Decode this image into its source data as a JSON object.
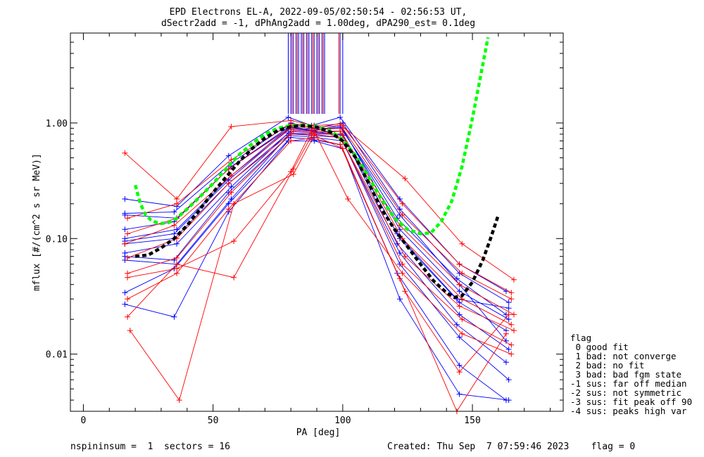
{
  "title_line1": "EPD Electrons EL-A, 2022-09-05/02:50:54 - 02:56:53 UT,",
  "title_line2": "dSectr2add = -1, dPhAng2add = 1.00deg, dPA290_est=   0.1deg",
  "footer_left": "nspininsum =  1  sectors = 16",
  "footer_right": "Created: Thu Sep  7 07:59:46 2023    flag = 0",
  "legend": {
    "title": "flag",
    "items": [
      " 0 good fit",
      " 1 bad: not converge",
      " 2 bad: no fit",
      " 3 bad: bad fgm state",
      "-1 sus: far off median",
      "-2 sus: not symmetric",
      "-3 sus: fit peak off 90",
      "-4 sus: peaks high var"
    ]
  },
  "colors": {
    "red": "#ff0000",
    "blue": "#0000ff",
    "green": "#00ff00",
    "black": "#000000"
  },
  "chart_data": {
    "type": "line",
    "xlabel": "PA [deg]",
    "ylabel": "mflux [#/(cm^2 s sr MeV)]",
    "xlim": [
      -5,
      185
    ],
    "ylim": [
      0.0032,
      6.0
    ],
    "yscale": "log",
    "x_ticks": [
      0,
      50,
      100,
      150
    ],
    "x_tick_labels": [
      "0",
      "50",
      "100",
      "150"
    ],
    "y_ticks": [
      0.01,
      0.1,
      1.0
    ],
    "y_tick_labels": [
      "0.01",
      "0.10",
      "1.00"
    ],
    "blue_series": [
      {
        "x": [
          16,
          36,
          56,
          79,
          88,
          99,
          122,
          145,
          163
        ],
        "y": [
          0.22,
          0.19,
          0.52,
          1.12,
          0.95,
          1.12,
          0.22,
          0.06,
          0.035
        ]
      },
      {
        "x": [
          16,
          35,
          57,
          80,
          89,
          100,
          122,
          145,
          164
        ],
        "y": [
          0.165,
          0.17,
          0.45,
          1.0,
          0.9,
          1.0,
          0.18,
          0.05,
          0.028
        ]
      },
      {
        "x": [
          16,
          35,
          56,
          80,
          88,
          99,
          121,
          144,
          163
        ],
        "y": [
          0.12,
          0.14,
          0.4,
          0.95,
          0.85,
          0.95,
          0.15,
          0.045,
          0.022
        ]
      },
      {
        "x": [
          16,
          36,
          57,
          79,
          89,
          100,
          122,
          145,
          164
        ],
        "y": [
          0.1,
          0.12,
          0.35,
          0.9,
          0.88,
          0.9,
          0.12,
          0.035,
          0.02
        ]
      },
      {
        "x": [
          16,
          35,
          56,
          80,
          88,
          99,
          122,
          145,
          163
        ],
        "y": [
          0.09,
          0.1,
          0.3,
          0.85,
          0.82,
          0.85,
          0.1,
          0.028,
          0.016
        ]
      },
      {
        "x": [
          16,
          36,
          57,
          79,
          89,
          100,
          121,
          145,
          164
        ],
        "y": [
          0.075,
          0.09,
          0.28,
          0.82,
          0.8,
          0.8,
          0.09,
          0.022,
          0.011
        ]
      },
      {
        "x": [
          16,
          35,
          56,
          80,
          88,
          99,
          122,
          144,
          163
        ],
        "y": [
          0.07,
          0.065,
          0.25,
          0.8,
          0.78,
          0.75,
          0.075,
          0.018,
          0.0085
        ]
      },
      {
        "x": [
          16,
          36,
          57,
          79,
          89,
          100,
          122,
          145,
          164
        ],
        "y": [
          0.065,
          0.06,
          0.22,
          0.78,
          0.75,
          0.7,
          0.06,
          0.014,
          0.006
        ]
      },
      {
        "x": [
          16,
          35,
          56,
          80,
          88,
          99,
          121,
          145,
          163
        ],
        "y": [
          0.034,
          0.055,
          0.2,
          0.75,
          0.72,
          0.65,
          0.05,
          0.008,
          0.004
        ]
      },
      {
        "x": [
          16,
          35,
          56,
          79,
          89,
          100,
          122,
          145,
          164
        ],
        "y": [
          0.027,
          0.021,
          0.17,
          0.7,
          0.7,
          0.6,
          0.03,
          0.0045,
          0.004
        ]
      },
      {
        "x": [
          16,
          36,
          57,
          80,
          88,
          99,
          122,
          145,
          163
        ],
        "y": [
          0.16,
          0.15,
          0.42,
          0.92,
          0.86,
          0.92,
          0.16,
          0.04,
          0.013
        ]
      },
      {
        "x": [
          16,
          35,
          56,
          79,
          89,
          100,
          121,
          144,
          164
        ],
        "y": [
          0.095,
          0.11,
          0.32,
          0.88,
          0.84,
          0.78,
          0.11,
          0.03,
          0.025
        ]
      }
    ],
    "red_series": [
      {
        "x": [
          16,
          36,
          57,
          80,
          89,
          99,
          124,
          146,
          166
        ],
        "y": [
          0.55,
          0.22,
          0.93,
          1.05,
          0.95,
          0.98,
          0.33,
          0.09,
          0.044
        ]
      },
      {
        "x": [
          17,
          36,
          57,
          80,
          88,
          100,
          123,
          145,
          165
        ],
        "y": [
          0.15,
          0.2,
          0.48,
          0.98,
          0.92,
          0.95,
          0.2,
          0.06,
          0.034
        ]
      },
      {
        "x": [
          17,
          36,
          56,
          81,
          89,
          100,
          123,
          146,
          165
        ],
        "y": [
          0.11,
          0.15,
          0.4,
          0.95,
          0.88,
          0.9,
          0.16,
          0.05,
          0.03
        ]
      },
      {
        "x": [
          16,
          35,
          57,
          80,
          88,
          99,
          122,
          145,
          166
        ],
        "y": [
          0.09,
          0.13,
          0.35,
          0.9,
          0.85,
          0.85,
          0.13,
          0.04,
          0.022
        ]
      },
      {
        "x": [
          17,
          36,
          56,
          81,
          89,
          100,
          123,
          146,
          165
        ],
        "y": [
          0.068,
          0.1,
          0.3,
          0.85,
          0.82,
          0.8,
          0.1,
          0.03,
          0.018
        ]
      },
      {
        "x": [
          17,
          36,
          57,
          80,
          88,
          99,
          124,
          145,
          166
        ],
        "y": [
          0.05,
          0.068,
          0.25,
          0.8,
          0.8,
          0.75,
          0.07,
          0.026,
          0.016
        ]
      },
      {
        "x": [
          17,
          36,
          58,
          80,
          89,
          100,
          123,
          146,
          165
        ],
        "y": [
          0.046,
          0.055,
          0.095,
          0.38,
          0.95,
          0.7,
          0.06,
          0.02,
          0.012
        ]
      },
      {
        "x": [
          17,
          36,
          58,
          81,
          89,
          102,
          123,
          146,
          165
        ],
        "y": [
          0.021,
          0.06,
          0.046,
          0.4,
          0.85,
          0.22,
          0.05,
          0.015,
          0.01
        ]
      },
      {
        "x": [
          18,
          37,
          58,
          81,
          89,
          100,
          124,
          145,
          164
        ],
        "y": [
          0.016,
          0.004,
          0.2,
          0.36,
          0.78,
          0.6,
          0.035,
          0.007,
          0.022
        ]
      },
      {
        "x": [
          17,
          36,
          56,
          80,
          88,
          99,
          122,
          144,
          163
        ],
        "y": [
          0.03,
          0.05,
          0.18,
          0.7,
          0.74,
          0.65,
          0.045,
          0.0032,
          0.015
        ]
      }
    ],
    "vertical_spikes": {
      "blue_x": [
        79,
        80,
        81,
        82,
        83,
        84,
        85,
        86,
        87,
        88,
        89,
        90,
        91,
        92,
        93,
        99,
        100
      ],
      "red_x": [
        80.5,
        82.5,
        84.5,
        86.5,
        88.5,
        90.5,
        92.5,
        98.5
      ]
    },
    "green_fit_curve": {
      "x": [
        20,
        22,
        24,
        26,
        28,
        30,
        33,
        36,
        40,
        45,
        50,
        55,
        60,
        65,
        70,
        75,
        80,
        85,
        90,
        95,
        100,
        105,
        110,
        115,
        120,
        125,
        130,
        134,
        138,
        142,
        146,
        150,
        154,
        156
      ],
      "y": [
        0.29,
        0.2,
        0.16,
        0.145,
        0.138,
        0.135,
        0.138,
        0.15,
        0.18,
        0.23,
        0.3,
        0.4,
        0.53,
        0.66,
        0.8,
        0.9,
        0.95,
        0.96,
        0.93,
        0.86,
        0.72,
        0.52,
        0.34,
        0.22,
        0.15,
        0.12,
        0.11,
        0.112,
        0.14,
        0.21,
        0.42,
        1.1,
        3.2,
        5.5
      ]
    },
    "black_fit_curve": {
      "x": [
        20,
        25,
        30,
        35,
        40,
        45,
        50,
        55,
        60,
        65,
        70,
        75,
        80,
        85,
        90,
        95,
        100,
        105,
        110,
        115,
        120,
        125,
        130,
        135,
        140,
        143,
        146,
        150,
        154,
        157,
        160
      ],
      "y": [
        0.07,
        0.072,
        0.083,
        0.1,
        0.13,
        0.18,
        0.25,
        0.34,
        0.46,
        0.6,
        0.74,
        0.86,
        0.93,
        0.95,
        0.92,
        0.84,
        0.7,
        0.5,
        0.3,
        0.18,
        0.12,
        0.085,
        0.06,
        0.043,
        0.034,
        0.031,
        0.032,
        0.042,
        0.065,
        0.1,
        0.16
      ]
    }
  }
}
